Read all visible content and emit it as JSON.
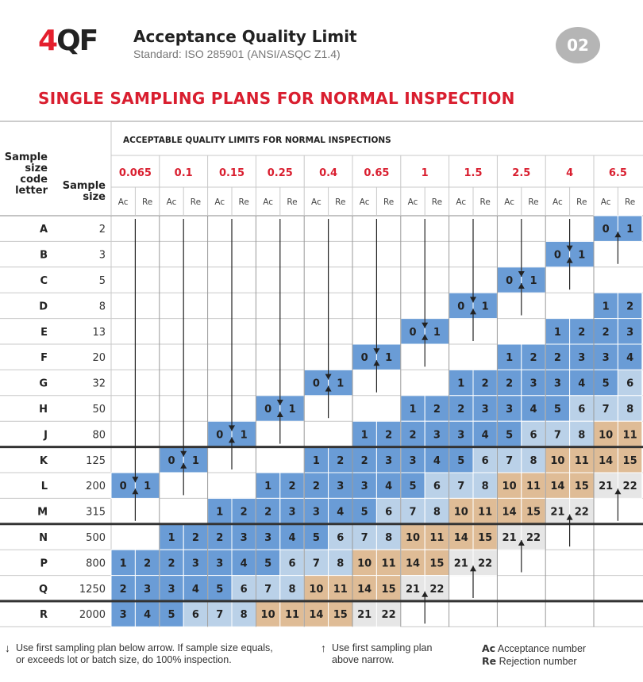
{
  "header": {
    "logo_four": "4",
    "logo_qf": "QF",
    "title": "Acceptance Quality Limit",
    "subtitle": "Standard: ISO 285901 (ANSI/ASQC Z1.4)",
    "badge": "02"
  },
  "heading": "SINGLE SAMPLING PLANS FOR NORMAL INSPECTION",
  "table": {
    "group_header": "ACCEPTABLE QUALITY LIMITS FOR NORMAL INSPECTIONS",
    "code_header": [
      "Sample",
      "size",
      "code",
      "letter"
    ],
    "size_header": [
      "Sample",
      "size"
    ],
    "ac_label": "Ac",
    "re_label": "Re",
    "aql_levels": [
      "0.065",
      "0.1",
      "0.15",
      "0.25",
      "0.4",
      "0.65",
      "1",
      "1.5",
      "2.5",
      "4",
      "6.5"
    ],
    "rows": [
      {
        "code": "A",
        "size": "2",
        "start": 10,
        "values": [
          [
            0,
            1
          ]
        ]
      },
      {
        "code": "B",
        "size": "3",
        "start": 9,
        "values": [
          [
            0,
            1
          ]
        ]
      },
      {
        "code": "C",
        "size": "5",
        "start": 8,
        "values": [
          [
            0,
            1
          ]
        ]
      },
      {
        "code": "D",
        "size": "8",
        "start": 7,
        "values": [
          [
            0,
            1
          ],
          null,
          null,
          [
            1,
            2
          ]
        ]
      },
      {
        "code": "E",
        "size": "13",
        "start": 6,
        "values": [
          [
            0,
            1
          ],
          null,
          null,
          [
            1,
            2
          ],
          [
            2,
            3
          ]
        ]
      },
      {
        "code": "F",
        "size": "20",
        "start": 5,
        "values": [
          [
            0,
            1
          ],
          null,
          null,
          [
            1,
            2
          ],
          [
            2,
            3
          ],
          [
            3,
            4
          ]
        ]
      },
      {
        "code": "G",
        "size": "32",
        "start": 4,
        "values": [
          [
            0,
            1
          ],
          null,
          null,
          [
            1,
            2
          ],
          [
            2,
            3
          ],
          [
            3,
            4
          ],
          [
            5,
            6
          ]
        ]
      },
      {
        "code": "H",
        "size": "50",
        "start": 3,
        "values": [
          [
            0,
            1
          ],
          null,
          null,
          [
            1,
            2
          ],
          [
            2,
            3
          ],
          [
            3,
            4
          ],
          [
            5,
            6
          ],
          [
            7,
            8
          ]
        ]
      },
      {
        "code": "J",
        "size": "80",
        "start": 2,
        "values": [
          [
            0,
            1
          ],
          null,
          null,
          [
            1,
            2
          ],
          [
            2,
            3
          ],
          [
            3,
            4
          ],
          [
            5,
            6
          ],
          [
            7,
            8
          ],
          [
            10,
            11
          ]
        ]
      },
      {
        "code": "K",
        "size": "125",
        "start": 1,
        "values": [
          [
            0,
            1
          ],
          null,
          null,
          [
            1,
            2
          ],
          [
            2,
            3
          ],
          [
            3,
            4
          ],
          [
            5,
            6
          ],
          [
            7,
            8
          ],
          [
            10,
            11
          ],
          [
            14,
            15
          ]
        ]
      },
      {
        "code": "L",
        "size": "200",
        "start": 0,
        "values": [
          [
            0,
            1
          ],
          null,
          null,
          [
            1,
            2
          ],
          [
            2,
            3
          ],
          [
            3,
            4
          ],
          [
            5,
            6
          ],
          [
            7,
            8
          ],
          [
            10,
            11
          ],
          [
            14,
            15
          ],
          [
            21,
            22
          ]
        ]
      },
      {
        "code": "M",
        "size": "315",
        "start": 2,
        "values": [
          [
            1,
            2
          ],
          [
            2,
            3
          ],
          [
            3,
            4
          ],
          [
            5,
            6
          ],
          [
            7,
            8
          ],
          [
            10,
            11
          ],
          [
            14,
            15
          ],
          [
            21,
            22
          ]
        ]
      },
      {
        "code": "N",
        "size": "500",
        "start": 1,
        "values": [
          [
            1,
            2
          ],
          [
            2,
            3
          ],
          [
            3,
            4
          ],
          [
            5,
            6
          ],
          [
            7,
            8
          ],
          [
            10,
            11
          ],
          [
            14,
            15
          ],
          [
            21,
            22
          ]
        ]
      },
      {
        "code": "P",
        "size": "800",
        "start": 0,
        "values": [
          [
            1,
            2
          ],
          [
            2,
            3
          ],
          [
            3,
            4
          ],
          [
            5,
            6
          ],
          [
            7,
            8
          ],
          [
            10,
            11
          ],
          [
            14,
            15
          ],
          [
            21,
            22
          ]
        ]
      },
      {
        "code": "Q",
        "size": "1250",
        "start": 0,
        "values": [
          [
            2,
            3
          ],
          [
            3,
            4
          ],
          [
            5,
            6
          ],
          [
            7,
            8
          ],
          [
            10,
            11
          ],
          [
            14,
            15
          ],
          [
            21,
            22
          ]
        ]
      },
      {
        "code": "R",
        "size": "2000",
        "start": 0,
        "values": [
          [
            3,
            4
          ],
          [
            5,
            6
          ],
          [
            7,
            8
          ],
          [
            10,
            11
          ],
          [
            14,
            15
          ],
          [
            21,
            22
          ]
        ]
      }
    ],
    "down_arrows": [
      {
        "col": 0,
        "from": 0,
        "to": 9
      },
      {
        "col": 1,
        "from": 0,
        "to": 8
      },
      {
        "col": 2,
        "from": 0,
        "to": 7
      },
      {
        "col": 3,
        "from": 0,
        "to": 6
      },
      {
        "col": 4,
        "from": 0,
        "to": 5
      },
      {
        "col": 5,
        "from": 0,
        "to": 4
      },
      {
        "col": 6,
        "from": 0,
        "to": 3
      },
      {
        "col": 7,
        "from": 0,
        "to": 2
      },
      {
        "col": 8,
        "from": 0,
        "to": 1
      },
      {
        "col": 9,
        "from": 0,
        "to": 0
      }
    ],
    "up_arrows": [
      {
        "col": 0,
        "from": 11,
        "to": 10
      },
      {
        "col": 1,
        "from": 10,
        "to": 9
      },
      {
        "col": 2,
        "from": 9,
        "to": 8
      },
      {
        "col": 3,
        "from": 8,
        "to": 7
      },
      {
        "col": 4,
        "from": 7,
        "to": 6
      },
      {
        "col": 5,
        "from": 6,
        "to": 5
      },
      {
        "col": 6,
        "from": 5,
        "to": 4
      },
      {
        "col": 7,
        "from": 4,
        "to": 3
      },
      {
        "col": 8,
        "from": 3,
        "to": 2
      },
      {
        "col": 9,
        "from": 2,
        "to": 1
      },
      {
        "col": 10,
        "from": 1,
        "to": 0
      },
      {
        "col": 7,
        "from": 14,
        "to": 13
      },
      {
        "col": 8,
        "from": 13,
        "to": 12
      },
      {
        "col": 9,
        "from": 12,
        "to": 11
      },
      {
        "col": 10,
        "from": 11,
        "to": 10
      },
      {
        "col": 6,
        "from": 15,
        "to": 14
      }
    ],
    "thick_rules_after_rows": [
      8,
      11,
      14
    ],
    "colors": {
      "blue": "#6a9cd6",
      "light_blue": "#bad1e8",
      "tan": "#dfbc96",
      "light_gray": "#e6e6e6",
      "red": "#d91e2f",
      "grid": "#c8c8c8"
    }
  },
  "footer": {
    "down_note_line1": "Use first sampling plan below arrow. If sample size equals,",
    "down_note_line2": "or exceeds lot or batch size, do 100% inspection.",
    "up_note_line1": "Use first sampling plan",
    "up_note_line2": "above narrow.",
    "ac_abbr": "Ac",
    "ac_text": "Acceptance number",
    "re_abbr": "Re",
    "re_text": "Rejection number"
  }
}
